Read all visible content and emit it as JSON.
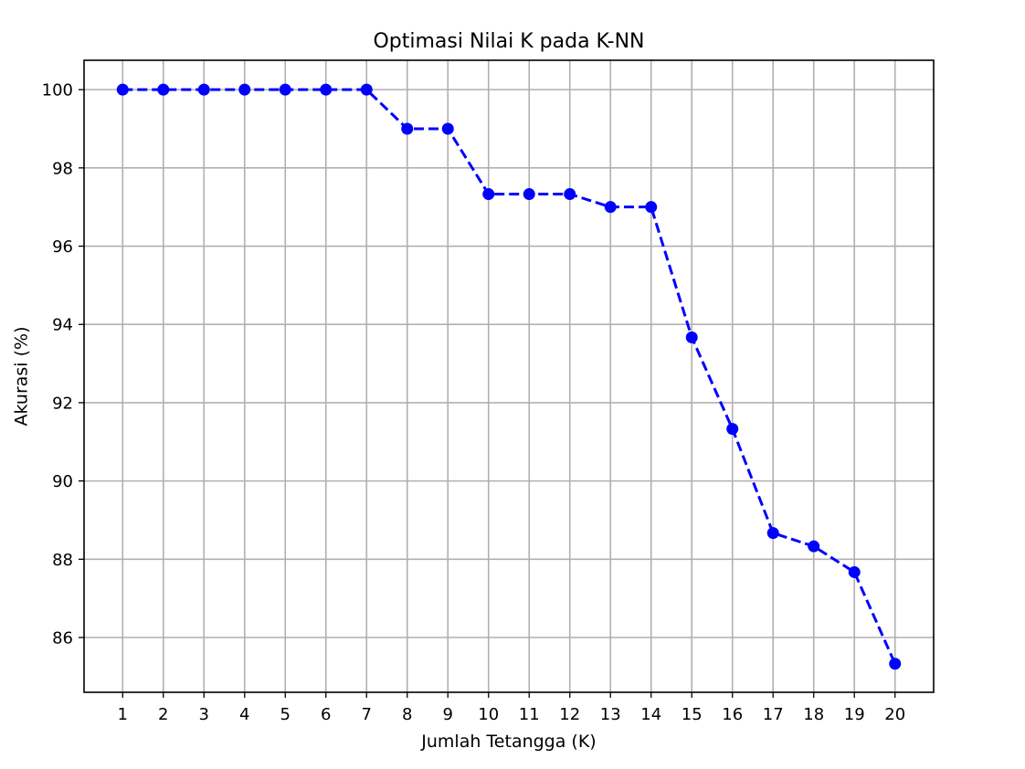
{
  "chart_data": {
    "type": "line",
    "title": "Optimasi Nilai K pada K-NN",
    "xlabel": "Jumlah Tetangga (K)",
    "ylabel": "Akurasi (%)",
    "x": [
      1,
      2,
      3,
      4,
      5,
      6,
      7,
      8,
      9,
      10,
      11,
      12,
      13,
      14,
      15,
      16,
      17,
      18,
      19,
      20
    ],
    "series": [
      {
        "values": [
          100.0,
          100.0,
          100.0,
          100.0,
          100.0,
          100.0,
          100.0,
          99.0,
          99.0,
          97.33,
          97.33,
          97.33,
          97.0,
          97.0,
          93.67,
          91.33,
          88.67,
          88.33,
          87.67,
          85.33
        ],
        "color": "#0000ff",
        "line_style": "dashed",
        "marker": "circle"
      }
    ],
    "xlim": [
      0.05,
      20.95
    ],
    "ylim": [
      84.6,
      100.75
    ],
    "xticks": [
      1,
      2,
      3,
      4,
      5,
      6,
      7,
      8,
      9,
      10,
      11,
      12,
      13,
      14,
      15,
      16,
      17,
      18,
      19,
      20
    ],
    "yticks": [
      86,
      88,
      90,
      92,
      94,
      96,
      98,
      100
    ],
    "grid": true,
    "legend": false
  }
}
